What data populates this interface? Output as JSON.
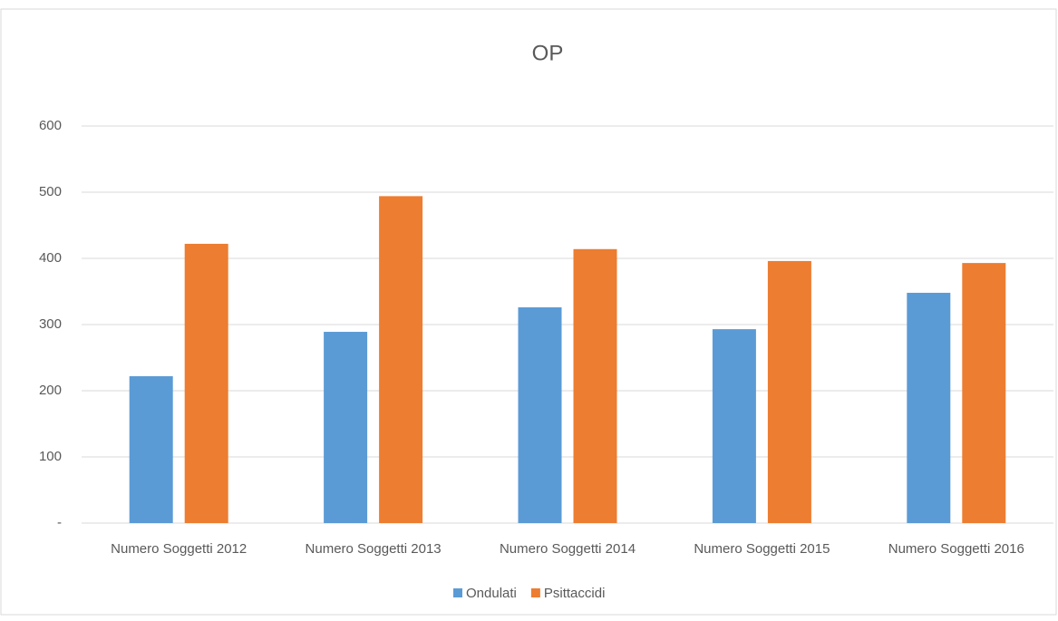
{
  "chart_data": {
    "type": "bar",
    "title": "OP",
    "categories": [
      "Numero Soggetti 2012",
      "Numero Soggetti 2013",
      "Numero Soggetti 2014",
      "Numero Soggetti 2015",
      "Numero Soggetti 2016"
    ],
    "series": [
      {
        "name": "Ondulati",
        "color": "#5b9bd5",
        "values": [
          222,
          289,
          326,
          293,
          348
        ]
      },
      {
        "name": "Psittaccidi",
        "color": "#ed7d31",
        "values": [
          422,
          494,
          414,
          396,
          393
        ]
      }
    ],
    "ylim": [
      0,
      600
    ],
    "yticks": [
      {
        "value": 0,
        "label": "-"
      },
      100,
      200,
      300,
      400,
      500,
      600
    ],
    "grid": true,
    "legend": "bottom"
  }
}
